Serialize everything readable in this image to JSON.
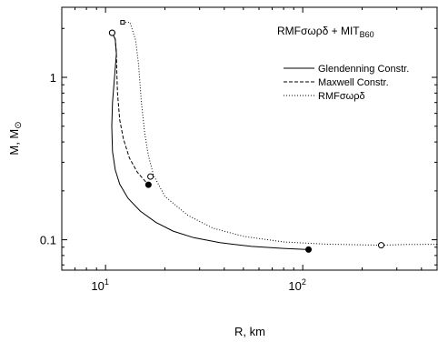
{
  "chart_data": {
    "type": "line",
    "title_main": "RMFσωρδ + MIT",
    "title_sub": "B60",
    "xlabel": "R,  km",
    "ylabel": "M,  M",
    "ylabel_symbol": "⊙",
    "x_scale": "log",
    "y_scale": "log",
    "xlim": [
      6.0,
      480
    ],
    "ylim": [
      0.065,
      2.7
    ],
    "grid": false,
    "legend_placement": "top-right",
    "x_ticks": [
      {
        "value": 10,
        "base": "10",
        "exp": "1"
      },
      {
        "value": 100,
        "base": "10",
        "exp": "2"
      }
    ],
    "y_ticks": [
      {
        "value": 1,
        "label": "1"
      },
      {
        "value": 0.1,
        "label": "0.1"
      }
    ],
    "series": [
      {
        "name": "Glendenning Constr.",
        "dash": "solid",
        "points": [
          [
            10.8,
            1.88
          ],
          [
            11.2,
            1.72
          ],
          [
            11.35,
            1.4
          ],
          [
            11.1,
            1.0
          ],
          [
            10.85,
            0.7
          ],
          [
            10.75,
            0.5
          ],
          [
            10.85,
            0.35
          ],
          [
            11.2,
            0.27
          ],
          [
            11.8,
            0.22
          ],
          [
            13.0,
            0.18
          ],
          [
            15.0,
            0.15
          ],
          [
            18.0,
            0.128
          ],
          [
            22.0,
            0.113
          ],
          [
            28.0,
            0.103
          ],
          [
            38.0,
            0.096
          ],
          [
            55.0,
            0.091
          ],
          [
            80.0,
            0.0885
          ],
          [
            107,
            0.087
          ]
        ]
      },
      {
        "name": "Maxwell Constr.",
        "dash": "dashed",
        "points": [
          [
            10.8,
            1.88
          ],
          [
            11.2,
            1.72
          ],
          [
            11.35,
            1.4
          ],
          [
            11.4,
            1.1
          ],
          [
            11.5,
            0.8
          ],
          [
            11.8,
            0.55
          ],
          [
            12.3,
            0.42
          ],
          [
            13.2,
            0.32
          ],
          [
            14.5,
            0.26
          ],
          [
            16.5,
            0.218
          ]
        ]
      },
      {
        "name": "RMFσωρδ",
        "dash": "dotted",
        "points": [
          [
            12.2,
            2.18
          ],
          [
            13.3,
            2.18
          ],
          [
            14.2,
            1.7
          ],
          [
            14.7,
            1.2
          ],
          [
            15.2,
            0.7
          ],
          [
            15.8,
            0.45
          ],
          [
            16.5,
            0.33
          ],
          [
            17.5,
            0.25
          ],
          [
            20.0,
            0.185
          ],
          [
            26.0,
            0.142
          ],
          [
            35.0,
            0.118
          ],
          [
            50.0,
            0.105
          ],
          [
            80.0,
            0.097
          ],
          [
            130,
            0.094
          ],
          [
            200,
            0.093
          ],
          [
            250,
            0.0925
          ],
          [
            330,
            0.0935
          ],
          [
            480,
            0.0937
          ]
        ]
      }
    ],
    "markers": [
      {
        "x": 10.8,
        "y": 1.88,
        "style": "filled"
      },
      {
        "x": 10.8,
        "y": 1.88,
        "style": "open"
      },
      {
        "x": 16.5,
        "y": 0.218,
        "style": "filled"
      },
      {
        "x": 16.9,
        "y": 0.245,
        "style": "open"
      },
      {
        "x": 107,
        "y": 0.087,
        "style": "filled"
      },
      {
        "x": 250,
        "y": 0.0925,
        "style": "open"
      },
      {
        "x": 12.2,
        "y": 2.18,
        "style": "open-square"
      }
    ]
  }
}
